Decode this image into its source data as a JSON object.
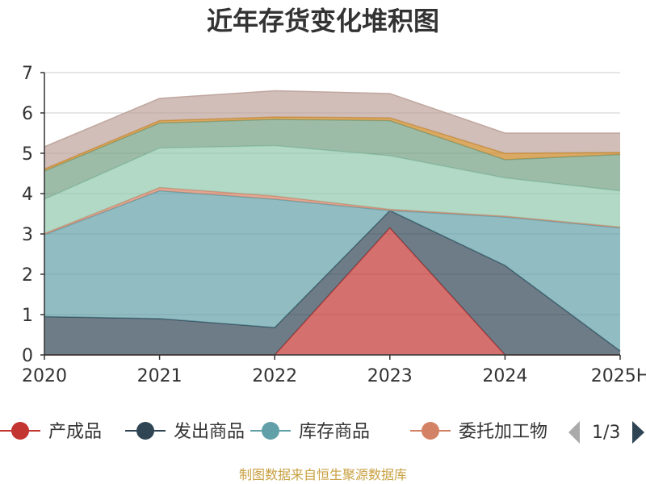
{
  "chart_data": {
    "type": "area",
    "stacked": true,
    "title": "近年存货变化堆积图",
    "ylabel": "",
    "xlabel": "",
    "categories": [
      "2020",
      "2021",
      "2022",
      "2023",
      "2024",
      "2025H"
    ],
    "ylim": [
      0,
      7
    ],
    "yticks": [
      0,
      1,
      2,
      3,
      4,
      5,
      6,
      7
    ],
    "grid": true,
    "series": [
      {
        "name": "产成品",
        "color": "#c23531",
        "values": [
          0,
          0,
          0,
          3.15,
          0,
          0
        ]
      },
      {
        "name": "发出商品",
        "color": "#2f4554",
        "values": [
          0.95,
          0.9,
          0.68,
          0.43,
          2.22,
          0.1
        ]
      },
      {
        "name": "库存商品",
        "color": "#61a0a8",
        "values": [
          2.03,
          3.17,
          3.18,
          0.0,
          1.2,
          3.05
        ]
      },
      {
        "name": "委托加工物资",
        "color": "#d48265",
        "values": [
          0.03,
          0.08,
          0.08,
          0.03,
          0.02,
          0.02
        ]
      },
      {
        "name": "",
        "color": "#91c7ae",
        "values": [
          0.85,
          0.98,
          1.25,
          1.33,
          0.95,
          0.9
        ]
      },
      {
        "name": "",
        "color": "#749f83",
        "values": [
          0.7,
          0.62,
          0.65,
          0.87,
          0.45,
          0.9
        ]
      },
      {
        "name": "",
        "color": "#ca8622",
        "values": [
          0.05,
          0.06,
          0.06,
          0.07,
          0.16,
          0.05
        ]
      },
      {
        "name": "",
        "color": "#bda29a",
        "values": [
          0.55,
          0.55,
          0.65,
          0.6,
          0.5,
          0.48
        ]
      }
    ]
  },
  "legend": {
    "items": [
      "产成品",
      "发出商品",
      "库存商品",
      "委托加工物"
    ],
    "page": "1/3",
    "placement": "bottom"
  },
  "source": "制图数据来自恒生聚源数据库"
}
